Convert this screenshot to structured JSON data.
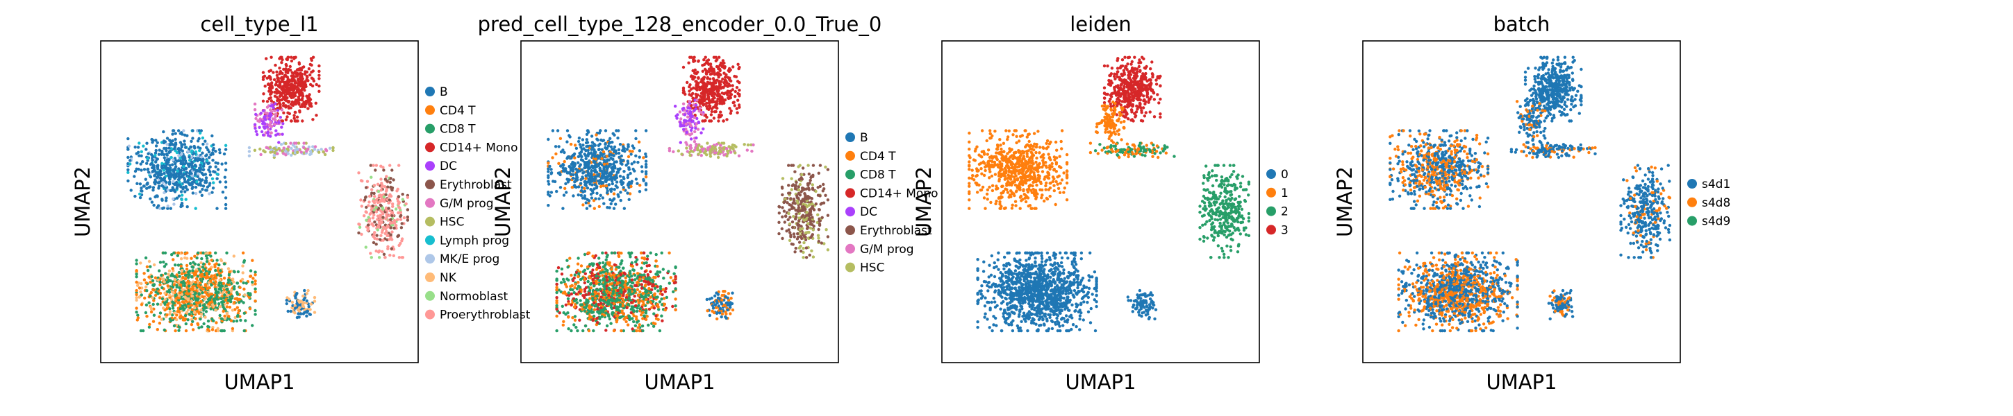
{
  "chart_data": [
    {
      "type": "scatter",
      "title": "cell_type_l1",
      "xlabel": "UMAP1",
      "ylabel": "UMAP2",
      "legend_position": "right",
      "categories": [
        {
          "name": "B",
          "color": "#1f77b4"
        },
        {
          "name": "CD4 T",
          "color": "#ff7f0e"
        },
        {
          "name": "CD8 T",
          "color": "#279e68"
        },
        {
          "name": "CD14+ Mono",
          "color": "#d62728"
        },
        {
          "name": "DC",
          "color": "#aa40fc"
        },
        {
          "name": "Erythroblast",
          "color": "#8c564b"
        },
        {
          "name": "G/M prog",
          "color": "#e377c2"
        },
        {
          "name": "HSC",
          "color": "#b5bd61"
        },
        {
          "name": "Lymph prog",
          "color": "#17becf"
        },
        {
          "name": "MK/E prog",
          "color": "#aec7e8"
        },
        {
          "name": "NK",
          "color": "#ffbb78"
        },
        {
          "name": "Normoblast",
          "color": "#98df8a"
        },
        {
          "name": "Proerythroblast",
          "color": "#ff9896"
        }
      ]
    },
    {
      "type": "scatter",
      "title": "pred_cell_type_128_encoder_0.0_True_0",
      "xlabel": "UMAP1",
      "ylabel": "UMAP2",
      "legend_position": "right",
      "categories": [
        {
          "name": "B",
          "color": "#1f77b4"
        },
        {
          "name": "CD4 T",
          "color": "#ff7f0e"
        },
        {
          "name": "CD8 T",
          "color": "#279e68"
        },
        {
          "name": "CD14+ Mono",
          "color": "#d62728"
        },
        {
          "name": "DC",
          "color": "#aa40fc"
        },
        {
          "name": "Erythroblast",
          "color": "#8c564b"
        },
        {
          "name": "G/M prog",
          "color": "#e377c2"
        },
        {
          "name": "HSC",
          "color": "#b5bd61"
        }
      ]
    },
    {
      "type": "scatter",
      "title": "leiden",
      "xlabel": "UMAP1",
      "ylabel": "UMAP2",
      "legend_position": "right",
      "categories": [
        {
          "name": "0",
          "color": "#1f77b4"
        },
        {
          "name": "1",
          "color": "#ff7f0e"
        },
        {
          "name": "2",
          "color": "#279e68"
        },
        {
          "name": "3",
          "color": "#d62728"
        }
      ]
    },
    {
      "type": "scatter",
      "title": "batch",
      "xlabel": "UMAP1",
      "ylabel": "UMAP2",
      "legend_position": "right",
      "categories": [
        {
          "name": "s4d1",
          "color": "#1f77b4"
        },
        {
          "name": "s4d8",
          "color": "#ff7f0e"
        },
        {
          "name": "s4d9",
          "color": "#279e68"
        }
      ]
    }
  ]
}
